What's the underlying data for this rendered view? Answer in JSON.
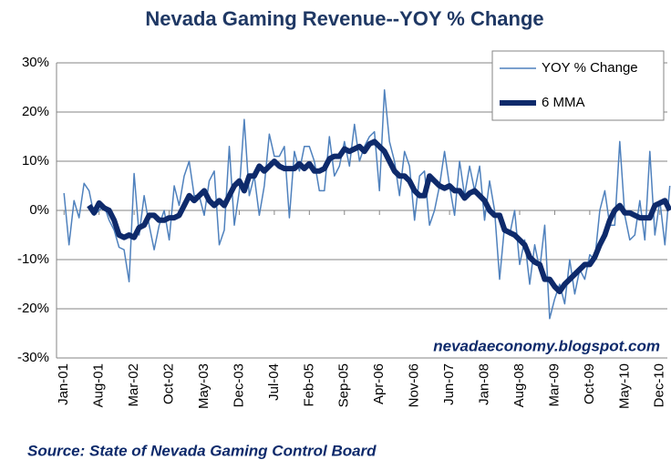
{
  "chart_data": {
    "type": "line",
    "title": "Nevada Gaming Revenue--YOY % Change",
    "annotations": [
      "nevadaeconomy.blogspot.com",
      "Source: State of Nevada Gaming Control Board"
    ],
    "categories": [
      "Jan-01",
      null,
      null,
      null,
      null,
      null,
      null,
      "Aug-01",
      null,
      null,
      null,
      null,
      null,
      null,
      "Mar-02",
      null,
      null,
      null,
      null,
      null,
      null,
      "Oct-02",
      null,
      null,
      null,
      null,
      null,
      null,
      "May-03",
      null,
      null,
      null,
      null,
      null,
      null,
      "Dec-03",
      null,
      null,
      null,
      null,
      null,
      null,
      "Jul-04",
      null,
      null,
      null,
      null,
      null,
      null,
      "Feb-05",
      null,
      null,
      null,
      null,
      null,
      null,
      "Sep-05",
      null,
      null,
      null,
      null,
      null,
      null,
      "Apr-06",
      null,
      null,
      null,
      null,
      null,
      null,
      "Nov-06",
      null,
      null,
      null,
      null,
      null,
      null,
      "Jun-07",
      null,
      null,
      null,
      null,
      null,
      null,
      "Jan-08",
      null,
      null,
      null,
      null,
      null,
      null,
      "Aug-08",
      null,
      null,
      null,
      null,
      null,
      null,
      "Mar-09",
      null,
      null,
      null,
      null,
      null,
      null,
      "Oct-09",
      null,
      null,
      null,
      null,
      null,
      null,
      "May-10",
      null,
      null,
      null,
      null,
      null,
      null,
      "Dec-10",
      null,
      null
    ],
    "series": [
      {
        "name": "YOY % Change",
        "color": "#4f81bd",
        "width": 1.5,
        "values": [
          3.5,
          -7,
          2,
          -1.5,
          5.5,
          4,
          -1,
          0,
          1,
          -2,
          -4,
          -7.5,
          -8,
          -14.5,
          7.5,
          -5,
          3,
          -3,
          -8,
          -3,
          0,
          -6,
          5,
          1,
          7,
          10,
          3,
          3,
          -1,
          6,
          8,
          -7,
          -4,
          13,
          -3,
          4,
          18.5,
          3,
          7,
          -1,
          5,
          15.5,
          11,
          11,
          13,
          -1.5,
          12,
          8,
          13,
          13,
          10,
          4,
          4,
          15,
          7,
          9,
          14,
          9,
          17.5,
          10,
          13,
          15,
          16,
          4,
          24.5,
          14,
          10,
          3,
          12,
          9,
          -2,
          7,
          8,
          -3,
          0,
          5,
          12,
          5,
          -1,
          10,
          3,
          9,
          4,
          9,
          -2,
          6,
          0,
          -14,
          -3,
          -5,
          0,
          -11,
          -6,
          -15,
          -7,
          -12,
          -3,
          -22,
          -18,
          -15,
          -19,
          -10,
          -17,
          -12,
          -14,
          -9,
          -10,
          0,
          4,
          -3,
          -3,
          14,
          -1,
          -6,
          -5,
          2,
          -6,
          12,
          -5,
          2,
          -7,
          5
        ]
      },
      {
        "name": "6 MMA",
        "color": "#0e2a6b",
        "width": 6,
        "values": [
          null,
          null,
          null,
          null,
          null,
          1,
          -0.5,
          1.5,
          0.5,
          0,
          -2,
          -5,
          -5.5,
          -5,
          -5.5,
          -3.5,
          -3,
          -1,
          -1,
          -2,
          -2,
          -1.5,
          -1.5,
          -1,
          1,
          3,
          2,
          3,
          4,
          2,
          1,
          2,
          1,
          3,
          5,
          6,
          4,
          7,
          7,
          9,
          8,
          9,
          10,
          9,
          8.5,
          8.5,
          8.5,
          9.5,
          8.5,
          9.5,
          8,
          8,
          8.5,
          10.5,
          11,
          11,
          12.5,
          12,
          12.5,
          13,
          12,
          13.5,
          14,
          13,
          12,
          10,
          8,
          7,
          7,
          6,
          4,
          3,
          3,
          7,
          6,
          5,
          4.5,
          5,
          4,
          4,
          2.5,
          3.5,
          4,
          3,
          2,
          0,
          -1,
          -1,
          -4,
          -4.5,
          -5,
          -6,
          -7,
          -9.5,
          -10.5,
          -11,
          -14,
          -14,
          -15.5,
          -16.5,
          -15,
          -14,
          -13,
          -12,
          -11,
          -11,
          -9.5,
          -7,
          -5,
          -2,
          0,
          1,
          -0.5,
          -0.5,
          -1,
          -1.5,
          -1.5,
          -1.5,
          1,
          1.5,
          2,
          0
        ]
      }
    ],
    "ylim": [
      -30,
      30
    ],
    "yticks": [
      {
        "value": -30,
        "label": "-30%"
      },
      {
        "value": -20,
        "label": "-20%"
      },
      {
        "value": -10,
        "label": "-10%"
      },
      {
        "value": 0,
        "label": "0%"
      },
      {
        "value": 10,
        "label": "10%"
      },
      {
        "value": 20,
        "label": "20%"
      },
      {
        "value": 30,
        "label": "30%"
      }
    ],
    "grid": true,
    "legend": "top-right"
  }
}
